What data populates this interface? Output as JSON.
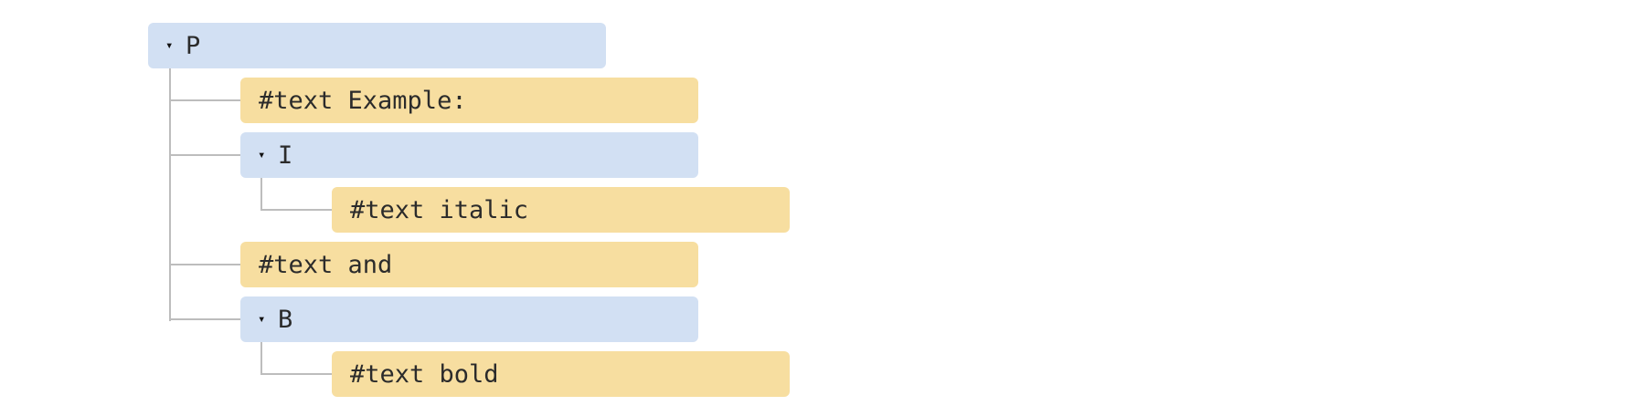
{
  "colors": {
    "element_node": "#d2e0f3",
    "text_node": "#f7dea0",
    "connector": "#bdbdbd"
  },
  "icons": {
    "expand_toggle": "triangle-down-icon",
    "glyph": "▾"
  },
  "tree": {
    "root": {
      "name": "P",
      "children": [
        {
          "text": "#text Example:"
        },
        {
          "name": "I",
          "children": [
            {
              "text": "#text italic"
            }
          ]
        },
        {
          "text": "#text and"
        },
        {
          "name": "B",
          "children": [
            {
              "text": "#text bold"
            }
          ]
        }
      ]
    }
  }
}
